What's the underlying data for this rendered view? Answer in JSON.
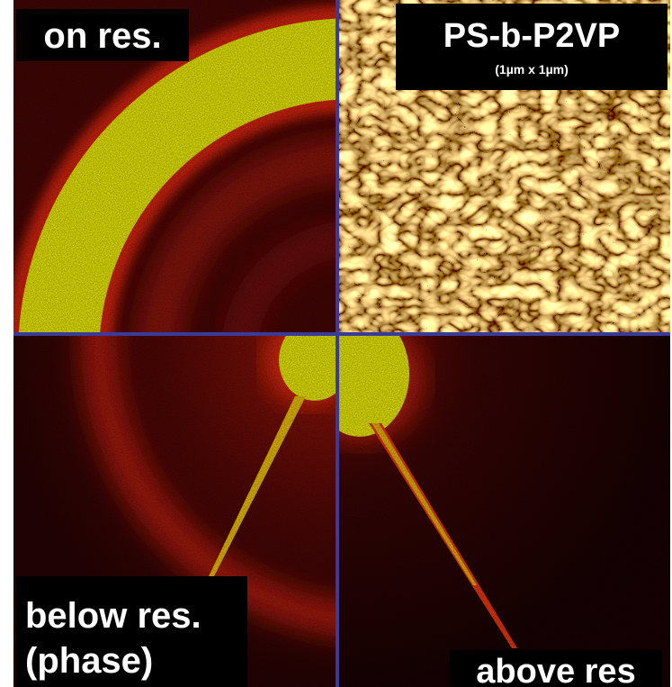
{
  "panels": {
    "top_left": {
      "label": "on res."
    },
    "top_right": {
      "title": "PS-b-P2VP",
      "subtitle": "(1µm x 1µm)"
    },
    "bottom_left": {
      "label_lines": [
        "below res.",
        "(phase)"
      ]
    },
    "bottom_right": {
      "label": "above res"
    }
  }
}
